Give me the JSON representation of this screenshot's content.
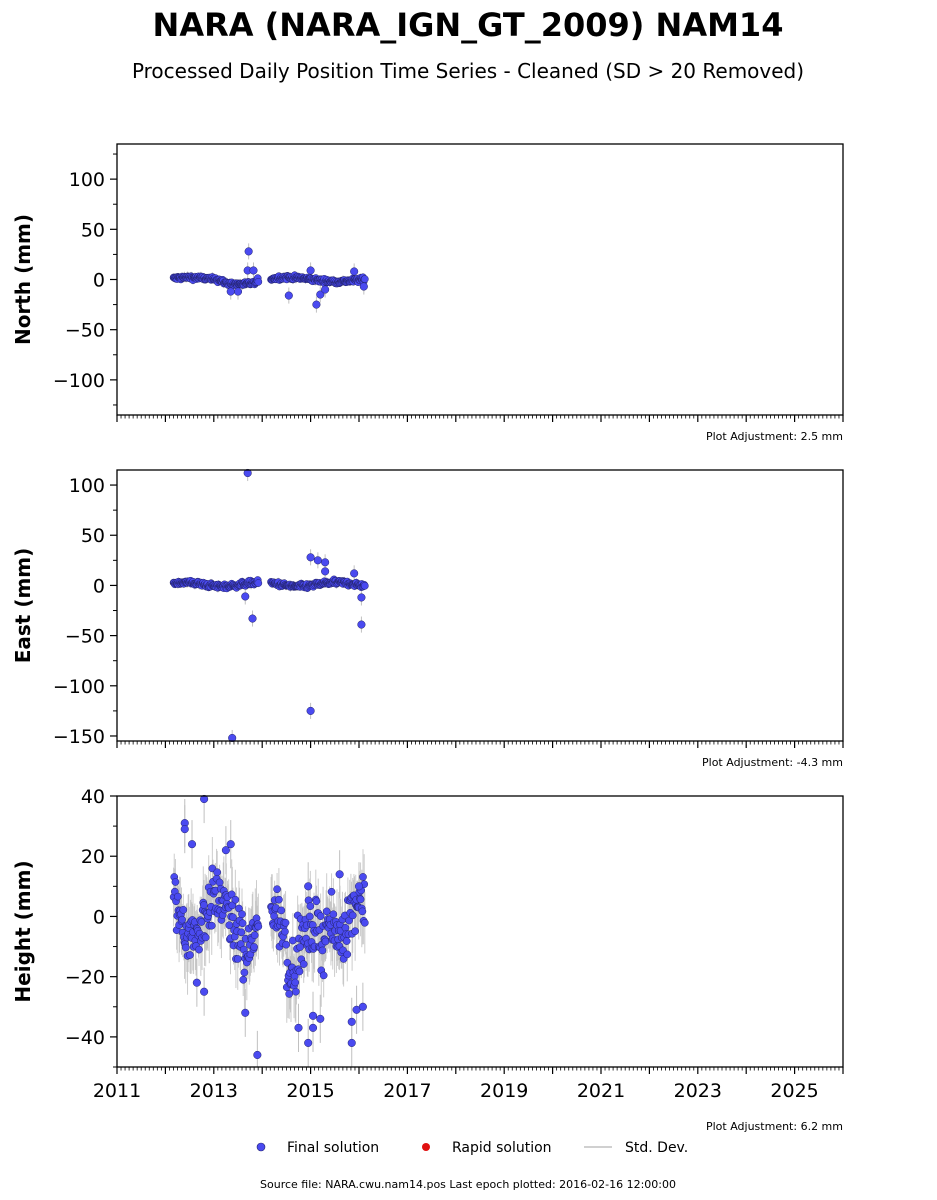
{
  "title": "NARA (NARA_IGN_GT_2009) NAM14",
  "subtitle": "Processed Daily Position Time Series - Cleaned (SD > 20 Removed)",
  "source_note": "Source file: NARA.cwu.nam14.pos  Last epoch plotted: 2016-02-16 12:00:00",
  "legend": {
    "final": "Final solution",
    "rapid": "Rapid solution",
    "std": "Std. Dev.",
    "placement": "bottom-center"
  },
  "colors": {
    "final": "#4a4af0",
    "final_edge": "#22226a",
    "rapid": "#e01010",
    "std": "#c0c0c0",
    "axes": "#000000"
  },
  "chart_data": [
    {
      "type": "scatter",
      "component": "north",
      "ylabel": "North (mm)",
      "ylim": [
        -135,
        135
      ],
      "yticks": [
        -100,
        -50,
        0,
        50,
        100
      ],
      "xlim": [
        2011,
        2026
      ],
      "adjustment": "Plot Adjustment: 2.5 mm",
      "outliers": [
        {
          "x": 2013.72,
          "y": 28
        },
        {
          "x": 2013.7,
          "y": 9
        },
        {
          "x": 2013.82,
          "y": 9
        },
        {
          "x": 2013.5,
          "y": -12
        },
        {
          "x": 2013.35,
          "y": -12
        },
        {
          "x": 2014.55,
          "y": -16
        },
        {
          "x": 2015.0,
          "y": 9
        },
        {
          "x": 2015.12,
          "y": -25
        },
        {
          "x": 2015.2,
          "y": -15
        },
        {
          "x": 2015.3,
          "y": -10
        },
        {
          "x": 2015.9,
          "y": 8
        },
        {
          "x": 2016.1,
          "y": -7
        }
      ]
    },
    {
      "type": "scatter",
      "component": "east",
      "ylabel": "East (mm)",
      "ylim": [
        -155,
        115
      ],
      "yticks": [
        -150,
        -100,
        -50,
        0,
        50,
        100
      ],
      "xlim": [
        2011,
        2026
      ],
      "adjustment": "Plot Adjustment: -4.3 mm",
      "outliers": [
        {
          "x": 2013.7,
          "y": 112
        },
        {
          "x": 2013.65,
          "y": -11
        },
        {
          "x": 2013.8,
          "y": -33
        },
        {
          "x": 2013.38,
          "y": -152
        },
        {
          "x": 2015.0,
          "y": -125
        },
        {
          "x": 2015.0,
          "y": 28
        },
        {
          "x": 2015.15,
          "y": 25
        },
        {
          "x": 2015.3,
          "y": 23
        },
        {
          "x": 2015.3,
          "y": 14
        },
        {
          "x": 2016.05,
          "y": -39
        },
        {
          "x": 2016.05,
          "y": -12
        },
        {
          "x": 2015.9,
          "y": 12
        }
      ]
    },
    {
      "type": "scatter",
      "component": "height",
      "ylabel": "Height (mm)",
      "ylim": [
        -50,
        40
      ],
      "yticks": [
        -40,
        -20,
        0,
        20,
        40
      ],
      "xlim": [
        2011,
        2026
      ],
      "xticks": [
        2011,
        2013,
        2015,
        2017,
        2019,
        2021,
        2023,
        2025
      ],
      "xticklabels": [
        "2011",
        "2013",
        "2015",
        "2017",
        "2019",
        "2021",
        "2023",
        "2025"
      ],
      "adjustment": "Plot Adjustment: 6.2 mm",
      "outliers": [
        {
          "x": 2012.8,
          "y": 39
        },
        {
          "x": 2012.4,
          "y": 31
        },
        {
          "x": 2012.4,
          "y": 29
        },
        {
          "x": 2012.55,
          "y": 24
        },
        {
          "x": 2013.35,
          "y": 24
        },
        {
          "x": 2013.25,
          "y": 22
        },
        {
          "x": 2013.9,
          "y": -46
        },
        {
          "x": 2013.65,
          "y": -32
        },
        {
          "x": 2012.8,
          "y": -25
        },
        {
          "x": 2012.65,
          "y": -22
        },
        {
          "x": 2014.95,
          "y": -42
        },
        {
          "x": 2015.05,
          "y": -37
        },
        {
          "x": 2014.75,
          "y": -37
        },
        {
          "x": 2015.05,
          "y": -33
        },
        {
          "x": 2015.2,
          "y": -34
        },
        {
          "x": 2015.85,
          "y": -42
        },
        {
          "x": 2015.85,
          "y": -35
        },
        {
          "x": 2015.95,
          "y": -31
        },
        {
          "x": 2016.08,
          "y": -30
        },
        {
          "x": 2014.95,
          "y": 10
        },
        {
          "x": 2015.6,
          "y": 14
        },
        {
          "x": 2016.0,
          "y": 10
        }
      ]
    }
  ]
}
